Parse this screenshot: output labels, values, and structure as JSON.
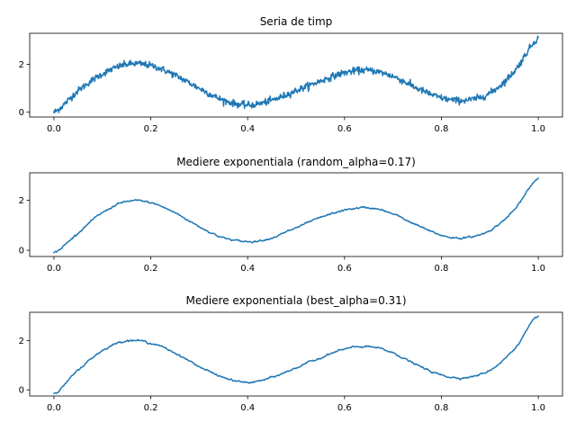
{
  "chart_data": [
    {
      "type": "line",
      "title": "Seria de timp",
      "xlabel": "",
      "ylabel": "",
      "xlim": [
        -0.05,
        1.05
      ],
      "ylim": [
        -0.2,
        3.3
      ],
      "xticks": [
        0.0,
        0.2,
        0.4,
        0.6,
        0.8,
        1.0
      ],
      "xtick_labels": [
        "0.0",
        "0.2",
        "0.4",
        "0.6",
        "0.8",
        "1.0"
      ],
      "yticks": [
        0,
        2
      ],
      "ytick_labels": [
        "0",
        "2"
      ],
      "grid": false,
      "noisy": true,
      "color": "#1f77b4",
      "series": [
        {
          "x": [
            0.0,
            0.05,
            0.1,
            0.15,
            0.2,
            0.25,
            0.3,
            0.35,
            0.4,
            0.45,
            0.5,
            0.55,
            0.6,
            0.65,
            0.7,
            0.75,
            0.8,
            0.85,
            0.9,
            0.95,
            1.0
          ],
          "y": [
            0.0,
            0.9,
            1.6,
            2.0,
            1.95,
            1.55,
            1.0,
            0.5,
            0.3,
            0.5,
            0.9,
            1.3,
            1.65,
            1.75,
            1.5,
            1.0,
            0.6,
            0.5,
            0.8,
            1.7,
            3.1
          ]
        }
      ]
    },
    {
      "type": "line",
      "title": "Mediere exponentiala (random_alpha=0.17)",
      "xlabel": "",
      "ylabel": "",
      "xlim": [
        -0.05,
        1.05
      ],
      "ylim": [
        -0.25,
        3.1
      ],
      "xticks": [
        0.0,
        0.2,
        0.4,
        0.6,
        0.8,
        1.0
      ],
      "xtick_labels": [
        "0.0",
        "0.2",
        "0.4",
        "0.6",
        "0.8",
        "1.0"
      ],
      "yticks": [
        0,
        2
      ],
      "ytick_labels": [
        "0",
        "2"
      ],
      "grid": false,
      "noisy": false,
      "color": "#1f77b4",
      "series": [
        {
          "x": [
            0.0,
            0.05,
            0.1,
            0.15,
            0.2,
            0.25,
            0.3,
            0.35,
            0.4,
            0.45,
            0.5,
            0.55,
            0.6,
            0.65,
            0.7,
            0.75,
            0.8,
            0.85,
            0.9,
            0.95,
            1.0
          ],
          "y": [
            -0.1,
            0.7,
            1.5,
            1.95,
            1.9,
            1.5,
            0.95,
            0.5,
            0.35,
            0.5,
            0.9,
            1.3,
            1.6,
            1.7,
            1.45,
            1.0,
            0.6,
            0.5,
            0.8,
            1.6,
            2.9
          ]
        }
      ]
    },
    {
      "type": "line",
      "title": "Mediere exponentiala (best_alpha=0.31)",
      "xlabel": "",
      "ylabel": "",
      "xlim": [
        -0.05,
        1.05
      ],
      "ylim": [
        -0.25,
        3.15
      ],
      "xticks": [
        0.0,
        0.2,
        0.4,
        0.6,
        0.8,
        1.0
      ],
      "xtick_labels": [
        "0.0",
        "0.2",
        "0.4",
        "0.6",
        "0.8",
        "1.0"
      ],
      "yticks": [
        0,
        2
      ],
      "ytick_labels": [
        "0",
        "2"
      ],
      "grid": false,
      "noisy": false,
      "color": "#1f77b4",
      "series": [
        {
          "x": [
            0.0,
            0.05,
            0.1,
            0.15,
            0.2,
            0.25,
            0.3,
            0.35,
            0.4,
            0.45,
            0.5,
            0.55,
            0.6,
            0.65,
            0.7,
            0.75,
            0.8,
            0.85,
            0.9,
            0.95,
            1.0
          ],
          "y": [
            -0.15,
            0.8,
            1.6,
            2.0,
            1.9,
            1.5,
            0.95,
            0.5,
            0.3,
            0.5,
            0.9,
            1.3,
            1.65,
            1.75,
            1.5,
            1.0,
            0.6,
            0.5,
            0.8,
            1.65,
            3.0
          ]
        }
      ]
    }
  ]
}
